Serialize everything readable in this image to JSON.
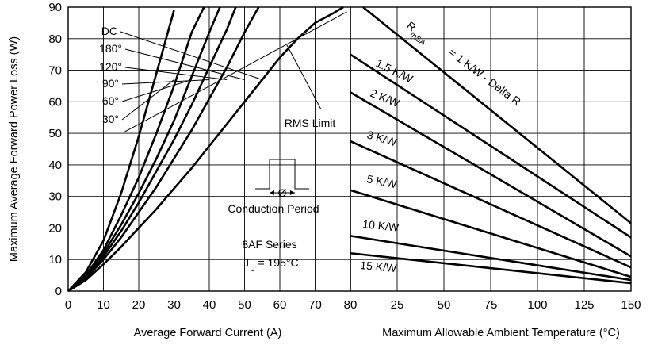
{
  "chart_data": [
    {
      "type": "line",
      "xlabel": "Average Forward Current (A)",
      "ylabel": "Maximum Average Forward Power Loss (W)",
      "xlim": [
        0,
        80
      ],
      "ylim": [
        0,
        90
      ],
      "x_ticks": [
        "0",
        "10",
        "20",
        "30",
        "40",
        "50",
        "60",
        "70",
        "80"
      ],
      "y_ticks": [
        "0",
        "10",
        "20",
        "30",
        "40",
        "50",
        "60",
        "70",
        "80",
        "90"
      ],
      "grid": true,
      "series": [
        {
          "name": "30°",
          "points": [
            [
              0,
              0
            ],
            [
              5,
              6
            ],
            [
              10,
              16
            ],
            [
              15,
              31
            ],
            [
              20,
              49
            ],
            [
              25,
              69
            ],
            [
              30,
              89
            ]
          ]
        },
        {
          "name": "60°",
          "points": [
            [
              0,
              0
            ],
            [
              5,
              5
            ],
            [
              10,
              13
            ],
            [
              15,
              24
            ],
            [
              20,
              36
            ],
            [
              25,
              50
            ],
            [
              30,
              65
            ],
            [
              35,
              82
            ],
            [
              38.5,
              90
            ]
          ]
        },
        {
          "name": "90°",
          "points": [
            [
              0,
              0
            ],
            [
              5,
              5
            ],
            [
              10,
              12
            ],
            [
              15,
              21
            ],
            [
              20,
              31
            ],
            [
              25,
              42
            ],
            [
              30,
              54
            ],
            [
              35,
              68
            ],
            [
              40,
              82
            ],
            [
              43,
              90
            ]
          ]
        },
        {
          "name": "120°",
          "points": [
            [
              0,
              0
            ],
            [
              5,
              4.5
            ],
            [
              10,
              11
            ],
            [
              15,
              19
            ],
            [
              20,
              28
            ],
            [
              25,
              38
            ],
            [
              30,
              48
            ],
            [
              35,
              59
            ],
            [
              40,
              71
            ],
            [
              45,
              83
            ],
            [
              47.5,
              90
            ]
          ]
        },
        {
          "name": "180°",
          "points": [
            [
              0,
              0
            ],
            [
              5,
              4
            ],
            [
              10,
              10
            ],
            [
              15,
              17
            ],
            [
              20,
              25
            ],
            [
              25,
              33
            ],
            [
              30,
              42
            ],
            [
              35,
              51
            ],
            [
              40,
              61
            ],
            [
              45,
              71
            ],
            [
              50,
              82
            ],
            [
              54,
              90
            ]
          ]
        },
        {
          "name": "DC",
          "points": [
            [
              0,
              0
            ],
            [
              5,
              3.5
            ],
            [
              10,
              8.5
            ],
            [
              15,
              14
            ],
            [
              20,
              20
            ],
            [
              25,
              26
            ],
            [
              30,
              32.5
            ],
            [
              35,
              39
            ],
            [
              40,
              46
            ],
            [
              45,
              53
            ],
            [
              50,
              60
            ],
            [
              55,
              67
            ],
            [
              60,
              74
            ],
            [
              65,
              80
            ],
            [
              70,
              85
            ],
            [
              75,
              88
            ],
            [
              78,
              90
            ]
          ]
        }
      ],
      "rms_limit": {
        "name": "RMS Limit",
        "points": [
          [
            25,
            55
          ],
          [
            79,
            88.5
          ]
        ]
      },
      "annotations": {
        "conduction": "Conduction Period",
        "phi": "Ø",
        "series_name": "8AF Series",
        "tj_prefix": "T",
        "tj_sub": "J",
        "tj_suffix": " = 195°C"
      }
    },
    {
      "type": "line",
      "xlabel": "Maximum Allowable Ambient Temperature (°C)",
      "xlim": [
        25,
        150
      ],
      "ylim": [
        0,
        90
      ],
      "x_ticks": [
        "0",
        "25",
        "50",
        "75",
        "100",
        "125",
        "150"
      ],
      "x_first_tick_value": 0,
      "grid": true,
      "series": [
        {
          "name": "= 1 K/W - Delta R",
          "values": [
            [
              14,
              90
            ],
            [
              150,
              21.5
            ]
          ]
        },
        {
          "name": "1.5 K/W",
          "values": [
            [
              0,
              75
            ],
            [
              150,
              17
            ]
          ]
        },
        {
          "name": "2 K/W",
          "values": [
            [
              0,
              63
            ],
            [
              150,
              11
            ]
          ]
        },
        {
          "name": "3 K/W",
          "values": [
            [
              0,
              47.5
            ],
            [
              150,
              7.5
            ]
          ]
        },
        {
          "name": "5 K/W",
          "values": [
            [
              0,
              32
            ],
            [
              150,
              4.5
            ]
          ]
        },
        {
          "name": "10 K/W",
          "values": [
            [
              0,
              17.5
            ],
            [
              150,
              3.5
            ]
          ]
        },
        {
          "name": "15 K/W",
          "values": [
            [
              0,
              12
            ],
            [
              150,
              2.5
            ]
          ]
        }
      ],
      "rthsa_label": {
        "main": "R",
        "sub": "thSA"
      }
    }
  ]
}
